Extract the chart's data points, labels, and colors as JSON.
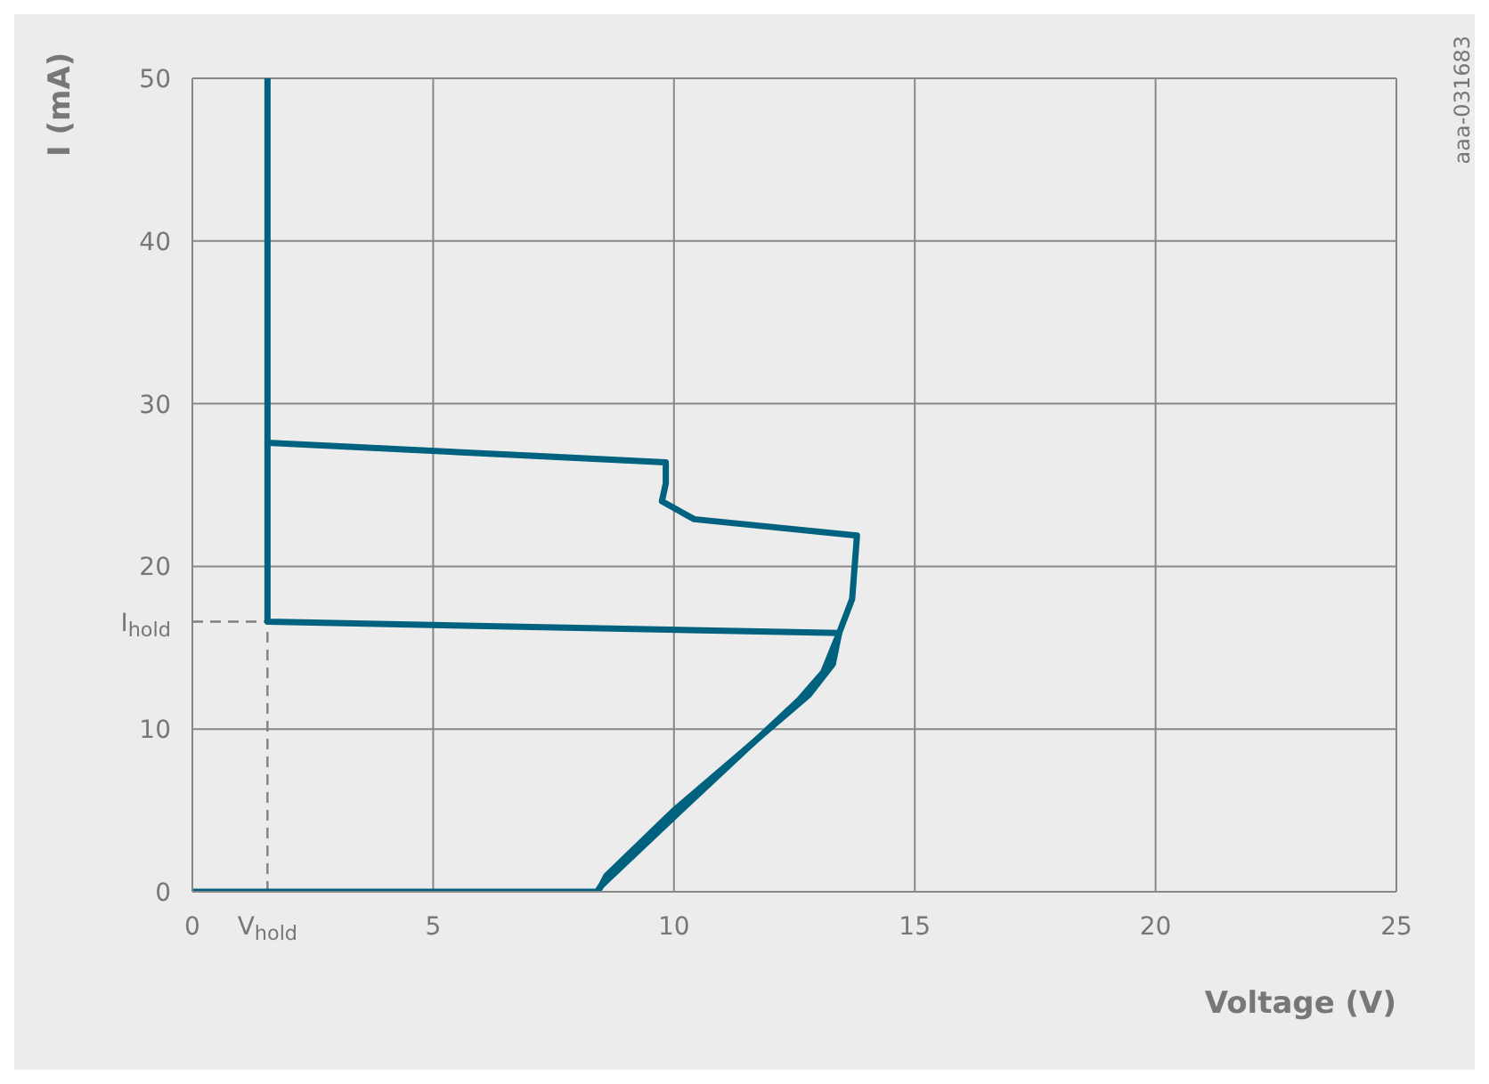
{
  "chart_data": {
    "type": "line",
    "xlabel": "Voltage (V)",
    "ylabel": "I (mA)",
    "annotations": [
      "aaa-031683"
    ],
    "xlim": [
      0,
      25
    ],
    "ylim": [
      0,
      50
    ],
    "xticks": [
      0,
      {
        "value": 1.56,
        "label": "V$_{hold}$"
      },
      5,
      10,
      15,
      20,
      25
    ],
    "yticks": [
      0,
      10,
      {
        "value": 16.6,
        "label": "I$_{hold}$"
      },
      20,
      30,
      40,
      50
    ],
    "grid": true,
    "marker": "none",
    "line_style": "solid",
    "series": [
      {
        "color": "#808080",
        "line_style": "dashed",
        "x": [
          1.56,
          1.56
        ],
        "values": [
          0,
          16.6
        ]
      },
      {
        "color": "#808080",
        "line_style": "dashed",
        "x": [
          0,
          1.56
        ],
        "values": [
          16.6,
          16.6
        ]
      },
      {
        "color": "#00627f",
        "x": [
          1.56,
          1.56,
          9.83,
          9.83,
          9.75,
          10.42,
          13.8,
          13.7,
          13.43,
          13.1,
          12.6,
          10,
          8.5,
          8.4,
          0
        ],
        "values": [
          50,
          27.6,
          26.4,
          25.1,
          24,
          22.9,
          21.9,
          18,
          15.9,
          13.5,
          11.8,
          4.6,
          0.4,
          0,
          0
        ]
      },
      {
        "color": "#00627f",
        "x": [
          8.42,
          8.6,
          10,
          12.8,
          13.3,
          13.43,
          1.56,
          1.56
        ],
        "values": [
          0,
          1,
          5,
          12.1,
          14,
          15.9,
          16.6,
          27.6
        ]
      }
    ]
  }
}
